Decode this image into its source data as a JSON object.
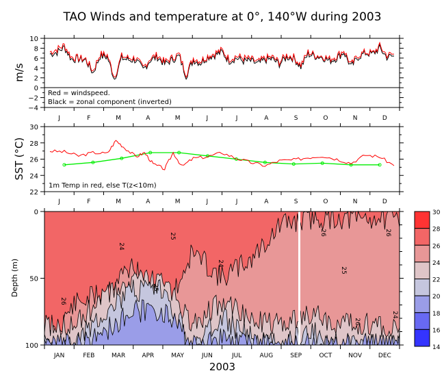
{
  "title": "TAO Winds and temperature at 0°, 140°W during 2003",
  "chart_data": [
    {
      "type": "line",
      "panel": "winds",
      "ylabel": "m/s",
      "ylim": [
        -4,
        10
      ],
      "yticks": [
        "10",
        "8",
        "6",
        "4",
        "2",
        "0",
        "−2",
        "−4"
      ],
      "month_ticks": [
        "J",
        "F",
        "M",
        "A",
        "M",
        "J",
        "J",
        "A",
        "S",
        "O",
        "N",
        "D"
      ],
      "annotations": [
        "Red = windspeed.",
        "Black = zonal component (inverted)"
      ],
      "colors": {
        "windspeed": "#ff0000",
        "zonal": "#000000"
      },
      "series": [
        {
          "name": "windspeed",
          "x_month": [
            0,
            0.25,
            0.5,
            0.75,
            1,
            1.25,
            1.5,
            1.75,
            2,
            2.25,
            2.5,
            2.75,
            3,
            3.25,
            3.5,
            3.75,
            4,
            4.25,
            4.5,
            4.75,
            5,
            5.25,
            5.5,
            5.75,
            6,
            6.25,
            6.5,
            6.75,
            7,
            7.25,
            7.5,
            7.75,
            8,
            8.25,
            8.5,
            8.75,
            9,
            9.25,
            9.5,
            9.75,
            10,
            10.25,
            10.5,
            10.75,
            11,
            11.25,
            11.5,
            11.75,
            12
          ],
          "values": [
            7.2,
            7.8,
            8.6,
            6.2,
            6.0,
            5.8,
            3.4,
            6.8,
            6.6,
            2.2,
            6.4,
            6.0,
            6.0,
            4.0,
            6.0,
            6.6,
            5.2,
            6.0,
            6.8,
            2.8,
            6.0,
            5.4,
            6.4,
            7.0,
            7.6,
            5.8,
            6.4,
            6.0,
            5.8,
            5.2,
            6.0,
            6.2,
            5.2,
            6.6,
            6.2,
            4.6,
            7.2,
            6.6,
            6.4,
            5.8,
            6.4,
            7.6,
            4.6,
            6.6,
            7.2,
            7.0,
            8.4,
            6.6,
            6.8
          ]
        },
        {
          "name": "zonal (inverted)",
          "x_month": [
            0,
            0.25,
            0.5,
            0.75,
            1,
            1.25,
            1.5,
            1.75,
            2,
            2.25,
            2.5,
            2.75,
            3,
            3.25,
            3.5,
            3.75,
            4,
            4.25,
            4.5,
            4.75,
            5,
            5.25,
            5.5,
            5.75,
            6,
            6.25,
            6.5,
            6.75,
            7,
            7.25,
            7.5,
            7.75,
            8,
            8.25,
            8.5,
            8.75,
            9,
            9.25,
            9.5,
            9.75,
            10,
            10.25,
            10.5,
            10.75,
            11,
            11.25,
            11.5,
            11.75,
            12
          ],
          "values": [
            6.8,
            7.2,
            8.2,
            5.8,
            5.8,
            5.6,
            3.0,
            6.4,
            6.2,
            1.8,
            6.0,
            5.6,
            5.6,
            3.6,
            5.6,
            6.2,
            4.8,
            5.6,
            6.4,
            2.4,
            5.6,
            5.0,
            6.2,
            6.6,
            7.2,
            5.4,
            6.0,
            5.4,
            5.4,
            4.8,
            5.6,
            5.8,
            4.8,
            6.2,
            6.0,
            4.2,
            6.8,
            6.4,
            6.2,
            5.4,
            6.0,
            7.2,
            4.2,
            6.2,
            7.0,
            6.8,
            8.0,
            6.2,
            6.4
          ]
        }
      ]
    },
    {
      "type": "line",
      "panel": "sst",
      "ylabel": "SST (°C)",
      "ylim": [
        22,
        30
      ],
      "yticks": [
        "30",
        "28",
        "26",
        "24",
        "22"
      ],
      "month_ticks": [
        "J",
        "F",
        "M",
        "A",
        "M",
        "J",
        "J",
        "A",
        "S",
        "O",
        "N",
        "D"
      ],
      "annotations": [
        "1m Temp in red, else T(z<10m)"
      ],
      "colors": {
        "temp1m": "#ff0000",
        "tsub": "#00ee00"
      },
      "series": [
        {
          "name": "1m Temp",
          "x_month": [
            0,
            0.5,
            1,
            1.5,
            2,
            2.3,
            2.6,
            3,
            3.3,
            3.6,
            4,
            4.3,
            4.6,
            5,
            5.5,
            6,
            6.5,
            7,
            7.5,
            8,
            8.5,
            9,
            9.5,
            10,
            10.5,
            11,
            11.5,
            12
          ],
          "values": [
            27.0,
            26.9,
            26.4,
            26.8,
            26.7,
            28.3,
            27.4,
            26.3,
            26.8,
            25.4,
            24.8,
            26.8,
            25.1,
            26.1,
            26.3,
            26.8,
            26.1,
            25.6,
            25.2,
            25.8,
            25.9,
            26.2,
            26.4,
            26.0,
            25.5,
            26.5,
            26.3,
            25.2
          ]
        },
        {
          "name": "T(z<10m)",
          "x_month": [
            0,
            1,
            2,
            3,
            4,
            5,
            6,
            7,
            8,
            9,
            10,
            11
          ],
          "values": [
            25.3,
            25.6,
            26.1,
            26.8,
            26.8,
            26.4,
            26.0,
            25.6,
            25.4,
            25.5,
            25.3,
            25.3
          ]
        }
      ]
    },
    {
      "type": "heatmap",
      "panel": "depth",
      "ylabel": "Depth (m)",
      "xlabel": "2003",
      "ylim": [
        100,
        0
      ],
      "yticks": [
        "0",
        "50",
        "100"
      ],
      "month_labels": [
        "JAN",
        "FEB",
        "MAR",
        "APR",
        "MAY",
        "JUN",
        "JUL",
        "AUG",
        "SEP",
        "OCT",
        "NOV",
        "DEC"
      ],
      "colorbar": {
        "levels": [
          "30",
          "28",
          "26",
          "24",
          "22",
          "20",
          "18",
          "16",
          "14"
        ],
        "colors": [
          "#ff3333",
          "#f26666",
          "#e89797",
          "#dfc5c8",
          "#c5c6de",
          "#9a9de8",
          "#6869f2",
          "#3434ff"
        ]
      },
      "contour_labels": [
        "26",
        "25",
        "24",
        "26",
        "25",
        "26",
        "24",
        "26",
        "25",
        "24"
      ],
      "d26_depth_by_month": [
        100,
        70,
        60,
        40,
        80,
        30,
        50,
        35,
        10,
        5,
        5,
        5
      ],
      "d22_depth_by_month": [
        100,
        100,
        75,
        60,
        60,
        100,
        80,
        95,
        100,
        90,
        100,
        100
      ]
    }
  ]
}
